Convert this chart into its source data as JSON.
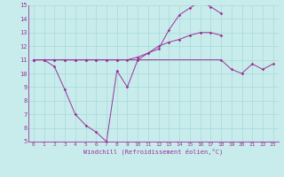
{
  "xlabel": "Windchill (Refroidissement éolien,°C)",
  "xlim": [
    -0.5,
    23.5
  ],
  "ylim": [
    5,
    15
  ],
  "yticks": [
    5,
    6,
    7,
    8,
    9,
    10,
    11,
    12,
    13,
    14,
    15
  ],
  "xticks": [
    0,
    1,
    2,
    3,
    4,
    5,
    6,
    7,
    8,
    9,
    10,
    11,
    12,
    13,
    14,
    15,
    16,
    17,
    18,
    19,
    20,
    21,
    22,
    23
  ],
  "bg_color": "#c8ecec",
  "grid_color": "#a8d8d8",
  "line_color": "#993399",
  "s1x": [
    0,
    1,
    2,
    3,
    4,
    5,
    6,
    7,
    8,
    9,
    10,
    11,
    12,
    13,
    14,
    15,
    16,
    17,
    18
  ],
  "s1y": [
    11,
    11,
    10.5,
    8.8,
    7.0,
    6.2,
    5.7,
    5.0,
    10.2,
    9.0,
    11.0,
    11.5,
    11.8,
    13.2,
    14.3,
    14.8,
    15.3,
    14.9,
    14.4
  ],
  "s2x": [
    0,
    1,
    2,
    3,
    4,
    5,
    6,
    7,
    8,
    9,
    10,
    11,
    12,
    13,
    14,
    15,
    16,
    17,
    18
  ],
  "s2y": [
    11,
    11,
    11,
    11,
    11,
    11,
    11,
    11,
    11,
    11,
    11.2,
    11.5,
    12.0,
    12.3,
    12.5,
    12.8,
    13.0,
    13.0,
    12.8
  ],
  "s3x": [
    0,
    1,
    2,
    3,
    4,
    5,
    6,
    7,
    8,
    18,
    19,
    20,
    21,
    22,
    23
  ],
  "s3y": [
    11,
    11,
    11,
    11,
    11,
    11,
    11,
    11,
    11,
    11.0,
    10.3,
    10.0,
    10.7,
    10.3,
    10.7
  ]
}
